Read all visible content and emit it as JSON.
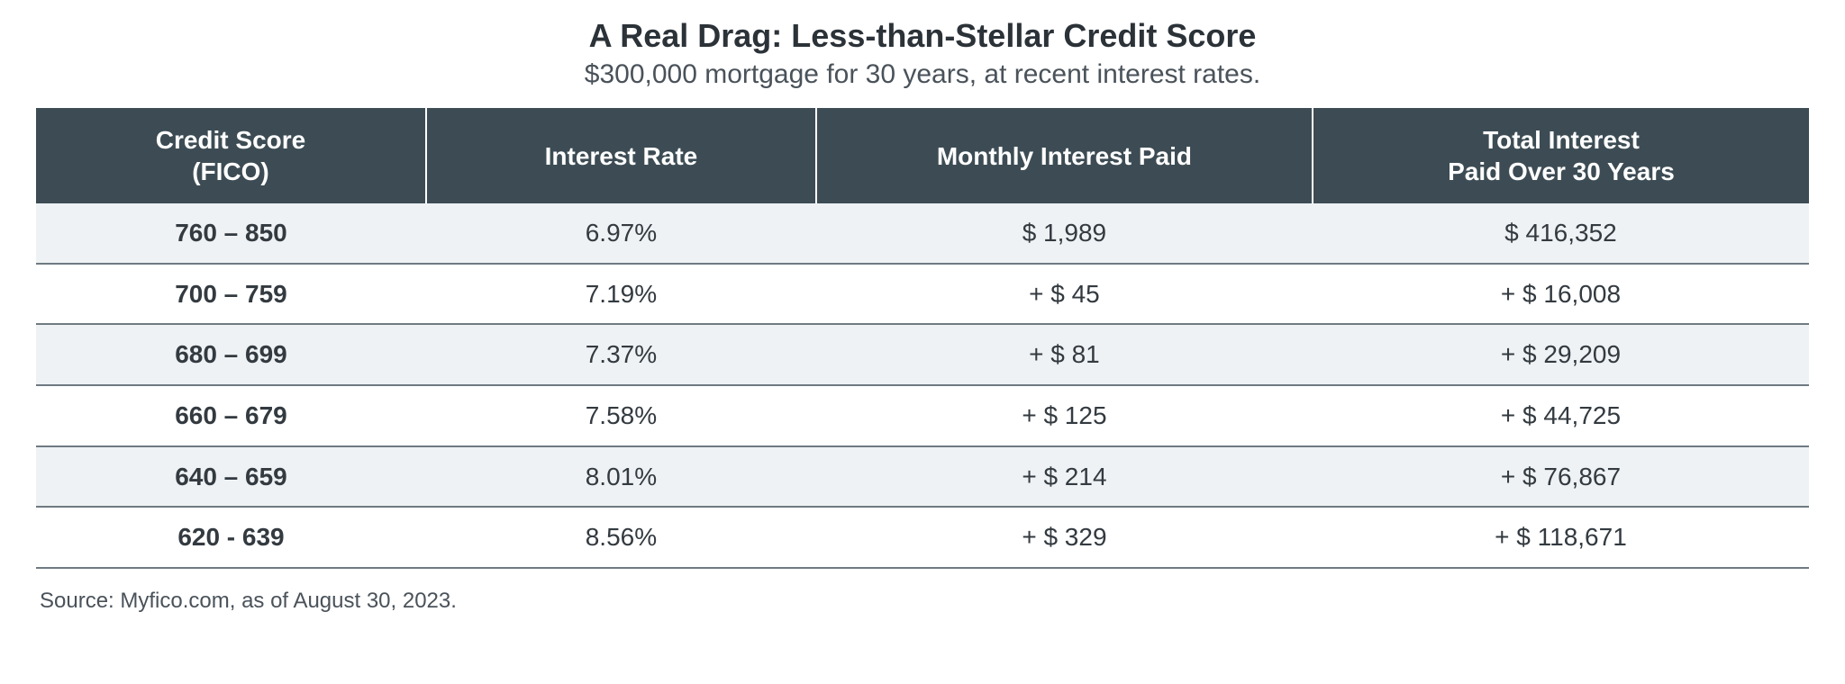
{
  "title": "A Real Drag: Less-than-Stellar Credit Score",
  "subtitle": "$300,000 mortgage for 30 years, at recent interest rates.",
  "source": "Source: Myfico.com, as of August 30, 2023.",
  "table": {
    "type": "table",
    "header_bg": "#3d4c54",
    "header_fg": "#ffffff",
    "stripe_bg": "#eef2f4",
    "row_border": "#6f7a82",
    "body_fg": "#333a40",
    "title_fontsize": 36,
    "subtitle_fontsize": 30,
    "header_fontsize": 28,
    "cell_fontsize": 28,
    "source_fontsize": 24,
    "columns": [
      {
        "key": "score",
        "label": "Credit Score\n(FICO)",
        "width_pct": 22,
        "align": "center",
        "bold_body": true
      },
      {
        "key": "rate",
        "label": "Interest Rate",
        "width_pct": 22,
        "align": "center",
        "bold_body": false
      },
      {
        "key": "monthly",
        "label": "Monthly Interest Paid",
        "width_pct": 28,
        "align": "center",
        "bold_body": false
      },
      {
        "key": "total",
        "label": "Total Interest\nPaid Over 30 Years",
        "width_pct": 28,
        "align": "center",
        "bold_body": false
      }
    ],
    "rows": [
      {
        "score": "760 – 850",
        "rate": "6.97%",
        "monthly": "$ 1,989",
        "total": "$ 416,352",
        "stripe": true
      },
      {
        "score": "700 – 759",
        "rate": "7.19%",
        "monthly": "+ $ 45",
        "total": "+ $ 16,008",
        "stripe": false
      },
      {
        "score": "680 – 699",
        "rate": "7.37%",
        "monthly": "+ $ 81",
        "total": "+ $ 29,209",
        "stripe": true
      },
      {
        "score": "660 – 679",
        "rate": "7.58%",
        "monthly": "+ $ 125",
        "total": "+ $ 44,725",
        "stripe": false
      },
      {
        "score": "640 – 659",
        "rate": "8.01%",
        "monthly": "+ $ 214",
        "total": "+ $ 76,867",
        "stripe": true
      },
      {
        "score": "620 - 639",
        "rate": "8.56%",
        "monthly": "+ $ 329",
        "total": "+ $ 118,671",
        "stripe": false
      }
    ]
  }
}
